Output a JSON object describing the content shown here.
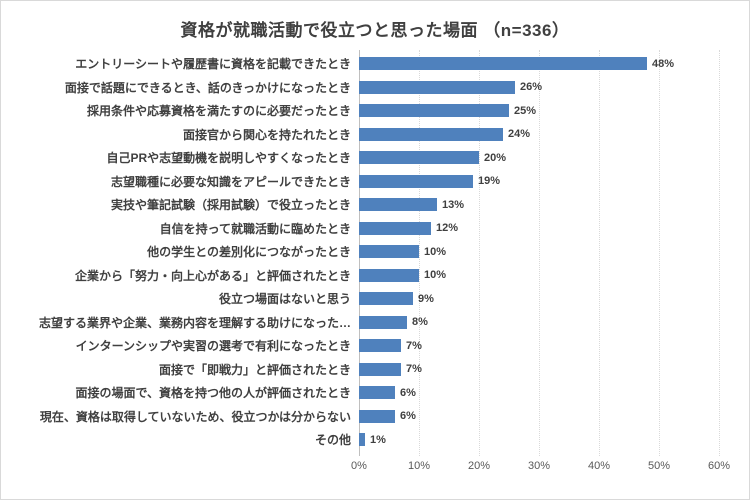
{
  "title": "資格が就職活動で役立つと思った場面 （n=336）",
  "colors": {
    "bar": "#4f81bd",
    "gridline": "#d9d9d9",
    "axis_line": "#bfbfbf",
    "label_text": "#404040",
    "tick_text": "#595959"
  },
  "chart_data": {
    "type": "bar",
    "orientation": "horizontal",
    "title": "資格が就職活動で役立つと思った場面 （n=336）",
    "n": 336,
    "categories": [
      "エントリーシートや履歴書に資格を記載できたとき",
      "面接で話題にできるとき、話のきっかけになったとき",
      "採用条件や応募資格を満たすのに必要だったとき",
      "面接官から関心を持たれたとき",
      "自己PRや志望動機を説明しやすくなったとき",
      "志望職種に必要な知識をアピールできたとき",
      "実技や筆記試験（採用試験）で役立ったとき",
      "自信を持って就職活動に臨めたとき",
      "他の学生との差別化につながったとき",
      "企業から「努力・向上心がある」と評価されたとき",
      "役立つ場面はないと思う",
      "志望する業界や企業、業務内容を理解する助けになった…",
      "インターンシップや実習の選考で有利になったとき",
      "面接で「即戦力」と評価されたとき",
      "面接の場面で、資格を持つ他の人が評価されたとき",
      "現在、資格は取得していないため、役立つかは分からない",
      "その他"
    ],
    "values": [
      48,
      26,
      25,
      24,
      20,
      19,
      13,
      12,
      10,
      10,
      9,
      8,
      7,
      7,
      6,
      6,
      1
    ],
    "value_suffix": "%",
    "xlabel": "",
    "ylabel": "",
    "xlim": [
      0,
      60
    ],
    "x_ticks": [
      "0%",
      "10%",
      "20%",
      "30%",
      "40%",
      "50%",
      "60%"
    ],
    "grid": "vertical-dotted",
    "legend": "none",
    "bar_color": "#4f81bd"
  }
}
